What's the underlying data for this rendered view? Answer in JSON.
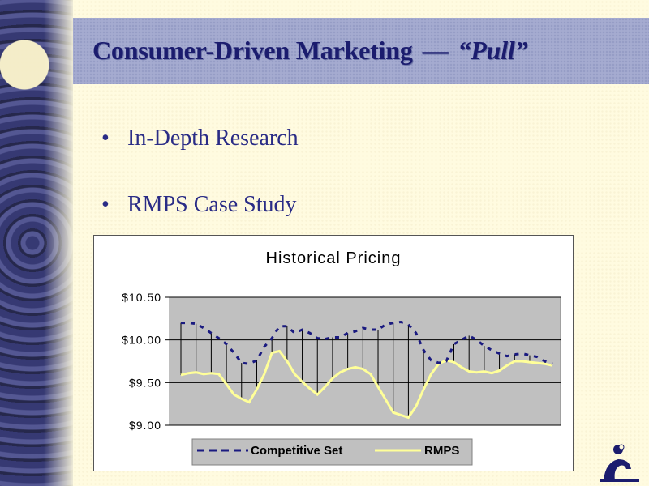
{
  "slide": {
    "title_main": "Consumer-Driven Marketing",
    "title_separator": "—",
    "title_quote": "“Pull”",
    "bullets": [
      {
        "marker": "•",
        "text": "In-Depth Research"
      },
      {
        "marker": "•",
        "text": "RMPS Case Study"
      }
    ]
  },
  "colors": {
    "title": "#1b1c6e",
    "bullet_text": "#2a2c86",
    "title_bar": "#a5abd0",
    "plot_area": "#c0c0c0",
    "competitive_set": "#1a1a80",
    "rmps": "#ffff99"
  },
  "chart_data": {
    "type": "line",
    "title": "Historical Pricing",
    "xlabel": "",
    "ylabel": "",
    "ylim": [
      9.0,
      10.5
    ],
    "yticks": [
      10.5,
      10.0,
      9.5,
      9.0
    ],
    "ytick_labels": [
      "$10.50",
      "$10.00",
      "$9.50",
      "$9.00"
    ],
    "grid": true,
    "legend_position": "bottom",
    "x": [
      1,
      2,
      3,
      4,
      5,
      6,
      7,
      8,
      9,
      10,
      11,
      12,
      13,
      14,
      15,
      16,
      17,
      18,
      19,
      20,
      21,
      22,
      23,
      24,
      25,
      26,
      27,
      28,
      29,
      30,
      31,
      32,
      33,
      34,
      35,
      36,
      37,
      38,
      39,
      40,
      41,
      42,
      43,
      44,
      45,
      46,
      47,
      48,
      49,
      50
    ],
    "series": [
      {
        "name": "Competitive Set",
        "style": "dashed",
        "values": [
          10.2,
          10.2,
          10.19,
          10.14,
          10.08,
          10.02,
          9.95,
          9.85,
          9.73,
          9.72,
          9.76,
          9.92,
          10.02,
          10.16,
          10.16,
          10.08,
          10.12,
          10.08,
          10.02,
          10.01,
          10.03,
          10.03,
          10.08,
          10.1,
          10.14,
          10.12,
          10.12,
          10.18,
          10.2,
          10.21,
          10.18,
          10.08,
          9.88,
          9.76,
          9.73,
          9.75,
          9.95,
          10.0,
          10.05,
          10.0,
          9.93,
          9.88,
          9.84,
          9.81,
          9.83,
          9.84,
          9.82,
          9.8,
          9.75,
          9.72
        ]
      },
      {
        "name": "RMPS",
        "style": "solid",
        "values": [
          9.59,
          9.61,
          9.62,
          9.6,
          9.61,
          9.6,
          9.48,
          9.36,
          9.31,
          9.27,
          9.42,
          9.6,
          9.85,
          9.87,
          9.75,
          9.6,
          9.51,
          9.43,
          9.36,
          9.45,
          9.55,
          9.62,
          9.66,
          9.68,
          9.66,
          9.6,
          9.45,
          9.3,
          9.15,
          9.12,
          9.09,
          9.22,
          9.42,
          9.6,
          9.72,
          9.76,
          9.74,
          9.68,
          9.63,
          9.62,
          9.63,
          9.61,
          9.64,
          9.7,
          9.75,
          9.75,
          9.74,
          9.73,
          9.72,
          9.7
        ]
      }
    ]
  }
}
